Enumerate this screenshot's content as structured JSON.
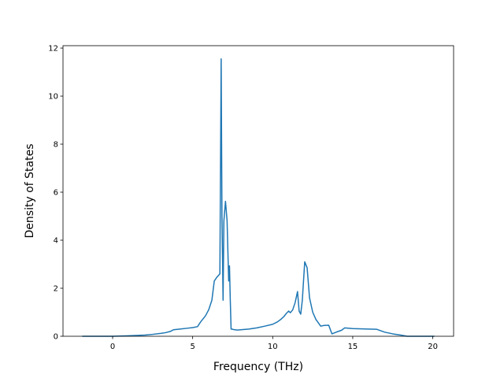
{
  "chart_data": {
    "type": "line",
    "title": "",
    "xlabel": "Frequency (THz)",
    "ylabel": "Density of States",
    "xlim": [
      -3.1,
      21.3
    ],
    "ylim": [
      0,
      12.1
    ],
    "xticks": [
      0,
      5,
      10,
      15,
      20
    ],
    "yticks": [
      0,
      2,
      4,
      6,
      8,
      10,
      12
    ],
    "grid": false,
    "legend": "none",
    "series_color": "#1f77b4",
    "series": [
      {
        "x": [
          -1.9,
          -1.0,
          0.0,
          1.0,
          2.0,
          2.5,
          3.0,
          3.3,
          3.6,
          3.8,
          4.2,
          4.6,
          5.0,
          5.3,
          5.5,
          5.8,
          6.0,
          6.2,
          6.35,
          6.5,
          6.7,
          6.78,
          6.83,
          6.9,
          6.95,
          7.05,
          7.15,
          7.25,
          7.3,
          7.35,
          7.4,
          7.45,
          7.55,
          7.8,
          8.0,
          8.5,
          9.0,
          9.5,
          10.0,
          10.3,
          10.5,
          10.7,
          10.85,
          11.0,
          11.1,
          11.25,
          11.4,
          11.55,
          11.65,
          11.75,
          11.85,
          12.0,
          12.15,
          12.3,
          12.5,
          12.7,
          13.0,
          13.2,
          13.5,
          13.7,
          14.0,
          14.3,
          14.5,
          15.0,
          16.0,
          16.5,
          17.0,
          17.5,
          18.0,
          18.4,
          19.0,
          20.1
        ],
        "y": [
          0.0,
          0.0,
          0.0,
          0.02,
          0.05,
          0.08,
          0.12,
          0.15,
          0.2,
          0.27,
          0.3,
          0.33,
          0.36,
          0.4,
          0.6,
          0.85,
          1.1,
          1.5,
          2.3,
          2.45,
          2.6,
          11.55,
          5.0,
          1.5,
          4.8,
          5.62,
          4.8,
          2.3,
          2.93,
          1.5,
          0.3,
          0.3,
          0.28,
          0.26,
          0.27,
          0.3,
          0.35,
          0.42,
          0.5,
          0.6,
          0.7,
          0.82,
          0.95,
          1.05,
          0.98,
          1.1,
          1.4,
          1.86,
          1.05,
          0.92,
          1.5,
          3.1,
          2.85,
          1.6,
          1.0,
          0.7,
          0.42,
          0.45,
          0.46,
          0.1,
          0.18,
          0.25,
          0.35,
          0.32,
          0.3,
          0.29,
          0.17,
          0.1,
          0.05,
          0.0,
          0.0,
          0.0
        ]
      }
    ]
  }
}
